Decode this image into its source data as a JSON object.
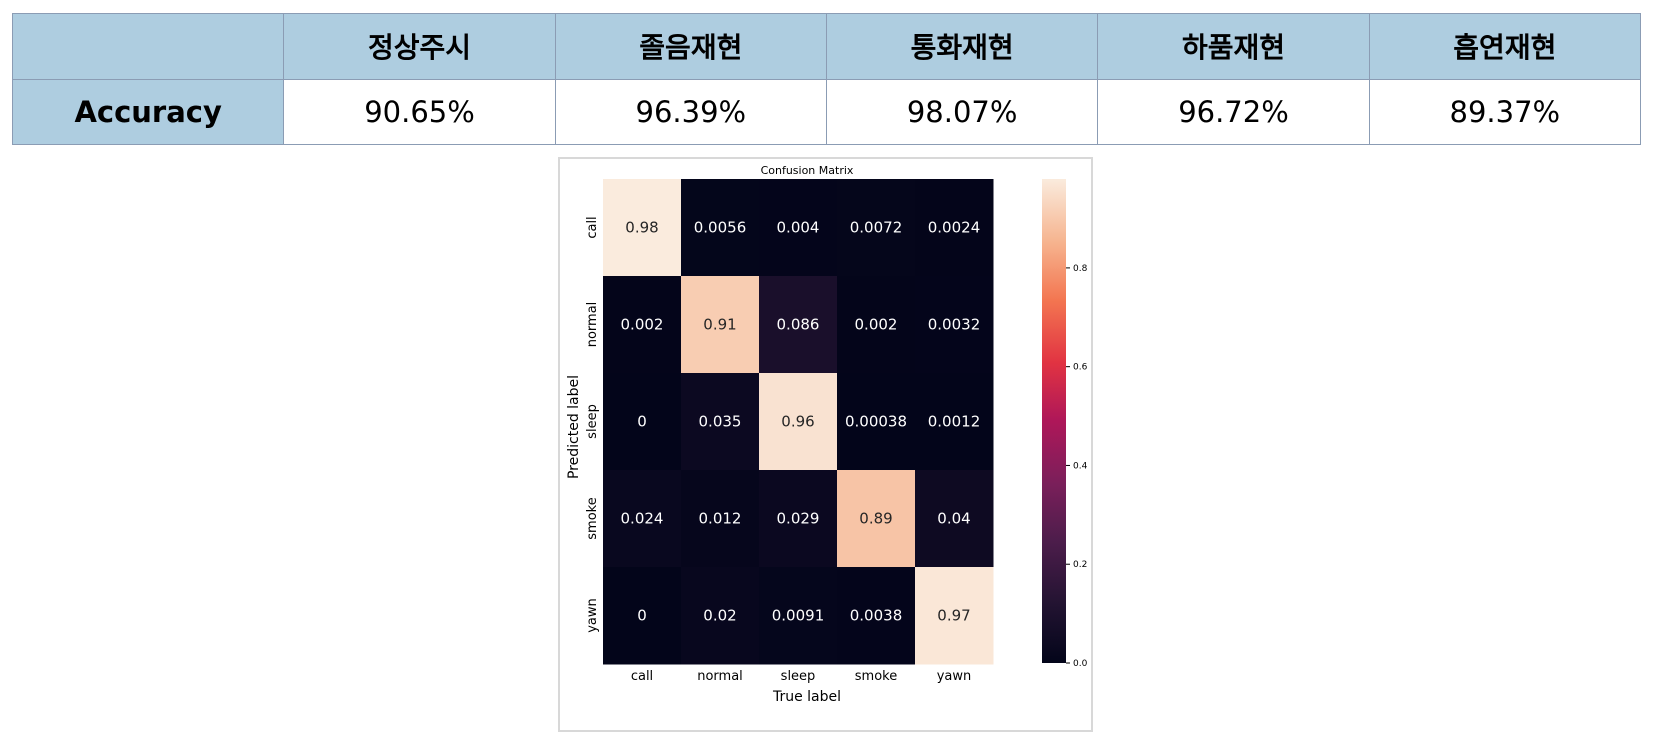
{
  "table": {
    "headers": [
      "",
      "정상주시",
      "졸음재현",
      "통화재현",
      "하품재현",
      "흡연재현"
    ],
    "row_label": "Accuracy",
    "values": [
      "90.65%",
      "96.39%",
      "98.07%",
      "96.72%",
      "89.37%"
    ]
  },
  "chart_data": {
    "type": "heatmap",
    "title": "Confusion Matrix",
    "xlabel": "True label",
    "ylabel": "Predicted label",
    "x_categories": [
      "call",
      "normal",
      "sleep",
      "smoke",
      "yawn"
    ],
    "y_categories": [
      "call",
      "normal",
      "sleep",
      "smoke",
      "yawn"
    ],
    "values": [
      [
        0.98,
        0.0056,
        0.004,
        0.0072,
        0.0024
      ],
      [
        0.002,
        0.91,
        0.086,
        0.002,
        0.0032
      ],
      [
        0,
        0.035,
        0.96,
        0.00038,
        0.0012
      ],
      [
        0.024,
        0.012,
        0.029,
        0.89,
        0.04
      ],
      [
        0,
        0.02,
        0.0091,
        0.0038,
        0.97
      ]
    ],
    "cell_labels": [
      [
        "0.98",
        "0.0056",
        "0.004",
        "0.0072",
        "0.0024"
      ],
      [
        "0.002",
        "0.91",
        "0.086",
        "0.002",
        "0.0032"
      ],
      [
        "0",
        "0.035",
        "0.96",
        "0.00038",
        "0.0012"
      ],
      [
        "0.024",
        "0.012",
        "0.029",
        "0.89",
        "0.04"
      ],
      [
        "0",
        "0.02",
        "0.0091",
        "0.0038",
        "0.97"
      ]
    ],
    "colorbar": {
      "colormap": "rocket",
      "range": [
        0,
        0.98
      ],
      "ticks": [
        0.0,
        0.2,
        0.4,
        0.6,
        0.8
      ],
      "tick_labels": [
        "0.0",
        "0.2",
        "0.4",
        "0.6",
        "0.8"
      ]
    }
  }
}
